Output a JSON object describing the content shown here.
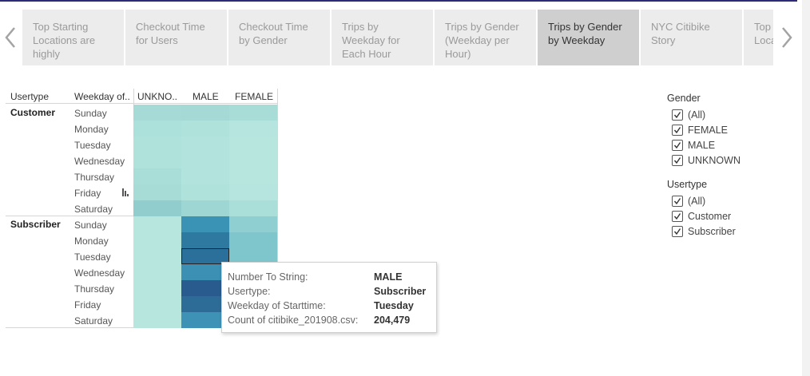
{
  "tabs": [
    {
      "label": "Top Starting Locations are highly"
    },
    {
      "label": "Checkout Time for Users"
    },
    {
      "label": "Checkout Time by Gender"
    },
    {
      "label": "Trips by Weekday for Each Hour"
    },
    {
      "label": "Trips by Gender (Weekday per Hour)"
    },
    {
      "label": "Trips by Gender by Weekday",
      "active": true
    },
    {
      "label": "NYC Citibike Story"
    },
    {
      "label": "Top Starting Locations"
    }
  ],
  "headers": {
    "usertype": "Usertype",
    "weekday": "Weekday of..",
    "unknown": "UNKNO..",
    "male": "MALE",
    "female": "FEMALE"
  },
  "groups": [
    {
      "name": "Customer",
      "days": [
        "Sunday",
        "Monday",
        "Tuesday",
        "Wednesday",
        "Thursday",
        "Friday",
        "Saturday"
      ]
    },
    {
      "name": "Subscriber",
      "days": [
        "Sunday",
        "Monday",
        "Tuesday",
        "Wednesday",
        "Thursday",
        "Friday",
        "Saturday"
      ]
    }
  ],
  "heatmap_colors": {
    "customer": {
      "unknown": [
        "#a6dad6",
        "#ace0da",
        "#b0e2dc",
        "#b0e2dc",
        "#a8ddd8",
        "#a6dbd6",
        "#92cdcd"
      ],
      "male": [
        "#a4d9d5",
        "#b0e2dc",
        "#b2e3dd",
        "#b2e3dd",
        "#b2e3dd",
        "#b0e2dc",
        "#9ed6d3"
      ],
      "female": [
        "#a7dcd7",
        "#b5e5de",
        "#b7e6df",
        "#b7e6df",
        "#b7e6df",
        "#b5e5de",
        "#aadfd9"
      ]
    },
    "subscriber": {
      "unknown": [
        "#b7e6df",
        "#b7e6df",
        "#b7e6df",
        "#b7e6df",
        "#b7e6df",
        "#b7e6df",
        "#b7e6df"
      ],
      "male": [
        "#3a93b5",
        "#2d79a0",
        "#2a709a",
        "#3b90b3",
        "#2a5b8e",
        "#2e6c98",
        "#3e92b6"
      ],
      "female": [
        "#90cfd1",
        "#7fc5cc",
        "#7fc5cc",
        "#7fc5cc",
        "#7fc5cc",
        "#7fc5cc",
        "#7fc5cc"
      ]
    }
  },
  "tooltip": [
    {
      "key": "Number To String:",
      "value": "MALE"
    },
    {
      "key": "Usertype:",
      "value": "Subscriber"
    },
    {
      "key": "Weekday of Starttime:",
      "value": "Tuesday"
    },
    {
      "key": "Count of citibike_201908.csv:",
      "value": "204,479"
    }
  ],
  "filters": {
    "gender": {
      "title": "Gender",
      "items": [
        "(All)",
        "FEMALE",
        "MALE",
        "UNKNOWN"
      ]
    },
    "usertype": {
      "title": "Usertype",
      "items": [
        "(All)",
        "Customer",
        "Subscriber"
      ]
    }
  },
  "accent_color": "#2e2a7a"
}
